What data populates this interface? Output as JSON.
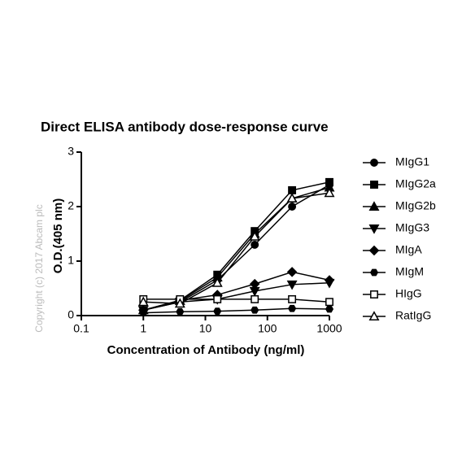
{
  "chart_data": {
    "type": "line",
    "title": "Direct ELISA antibody dose-response curve",
    "x_label": "Concentration of Antibody (ng/ml)",
    "y_label": "O.D.(405 nm)",
    "watermark": "Copyright (c) 2017 Abcam plc",
    "x_log": true,
    "x": [
      1,
      3.9,
      15.6,
      62.5,
      250,
      1000
    ],
    "xlim": [
      0.1,
      1000
    ],
    "xticks": [
      0.1,
      1,
      10,
      100,
      1000
    ],
    "ylim": [
      0,
      3
    ],
    "yticks": [
      0,
      1,
      2,
      3
    ],
    "series": [
      {
        "name": "MIgG1",
        "color": "#000000",
        "marker": "circle",
        "values": [
          0.1,
          0.25,
          0.65,
          1.3,
          2.0,
          2.4
        ]
      },
      {
        "name": "MIgG2a",
        "color": "#000000",
        "marker": "square",
        "values": [
          0.1,
          0.28,
          0.75,
          1.55,
          2.3,
          2.45
        ]
      },
      {
        "name": "MIgG2b",
        "color": "#000000",
        "marker": "triangle",
        "values": [
          0.1,
          0.27,
          0.7,
          1.5,
          2.15,
          2.35
        ]
      },
      {
        "name": "MIgG3",
        "color": "#000000",
        "marker": "triangle-down",
        "values": [
          0.1,
          0.25,
          0.3,
          0.45,
          0.57,
          0.6
        ]
      },
      {
        "name": "MIgA",
        "color": "#000000",
        "marker": "diamond",
        "values": [
          0.1,
          0.28,
          0.38,
          0.58,
          0.8,
          0.65
        ]
      },
      {
        "name": "MIgM",
        "color": "#000000",
        "marker": "hexagon",
        "values": [
          0.05,
          0.07,
          0.08,
          0.1,
          0.13,
          0.12
        ]
      },
      {
        "name": "HIgG",
        "color": "#000000",
        "marker": "open-square",
        "values": [
          0.3,
          0.3,
          0.3,
          0.3,
          0.3,
          0.25
        ]
      },
      {
        "name": "RatIgG",
        "color": "#000000",
        "marker": "open-triangle",
        "values": [
          0.25,
          0.22,
          0.6,
          1.45,
          2.15,
          2.25
        ]
      }
    ]
  }
}
